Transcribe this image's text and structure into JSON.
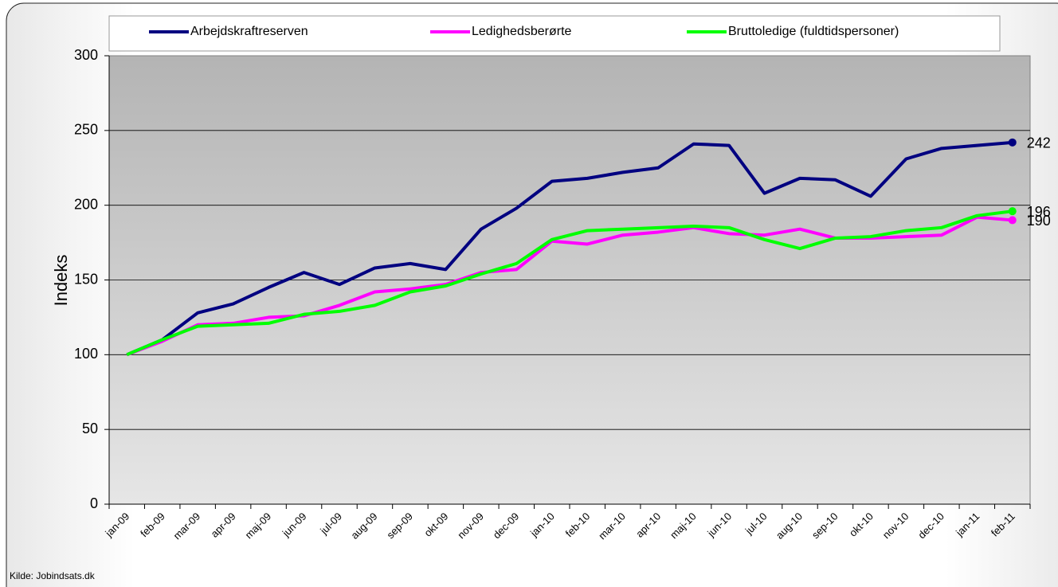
{
  "chart_data": {
    "type": "line",
    "categories": [
      "jan-09",
      "feb-09",
      "mar-09",
      "apr-09",
      "maj-09",
      "jun-09",
      "jul-09",
      "aug-09",
      "sep-09",
      "okt-09",
      "nov-09",
      "dec-09",
      "jan-10",
      "feb-10",
      "mar-10",
      "apr-10",
      "maj-10",
      "jun-10",
      "jul-10",
      "aug-10",
      "sep-10",
      "okt-10",
      "nov-10",
      "dec-10",
      "jan-11",
      "feb-11"
    ],
    "series": [
      {
        "name": "Arbejdskraftreserven",
        "color": "#000080",
        "values": [
          100,
          110,
          128,
          134,
          145,
          155,
          147,
          158,
          161,
          157,
          184,
          198,
          216,
          218,
          222,
          225,
          241,
          240,
          208,
          218,
          217,
          206,
          231,
          238,
          240,
          242
        ]
      },
      {
        "name": "Ledighedsberørte",
        "color": "#ff00ff",
        "values": [
          100,
          109,
          120,
          121,
          125,
          126,
          133,
          142,
          144,
          147,
          155,
          157,
          176,
          174,
          180,
          182,
          185,
          181,
          180,
          184,
          178,
          178,
          179,
          180,
          192,
          190
        ]
      },
      {
        "name": "Bruttoledige (fuldtidspersoner)",
        "color": "#00ff00",
        "values": [
          100,
          110,
          119,
          120,
          121,
          127,
          129,
          133,
          142,
          146,
          154,
          161,
          177,
          183,
          184,
          185,
          186,
          185,
          177,
          171,
          178,
          179,
          183,
          185,
          193,
          196
        ]
      }
    ],
    "ylabel": "Indeks",
    "ylim": [
      0,
      300
    ],
    "yticks": [
      0,
      50,
      100,
      150,
      200,
      250,
      300
    ],
    "grid": true,
    "legend": "top",
    "source": "Kilde: Jobindsats.dk"
  }
}
